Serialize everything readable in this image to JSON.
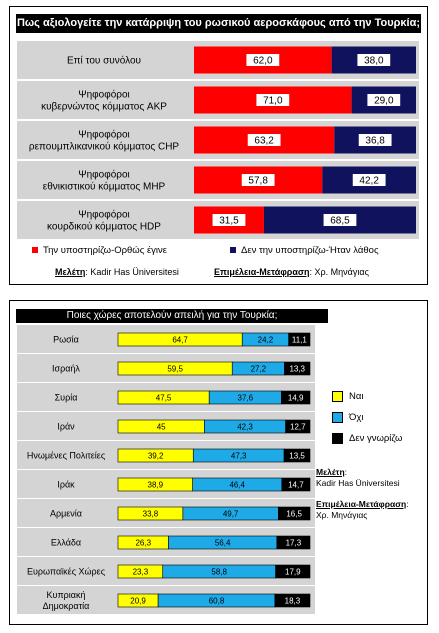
{
  "chart1": {
    "title": "Πως αξιολογείτε την κατάρριψη του ρωσικού αεροσκάφους από την Τουρκία;",
    "legend": [
      {
        "label": "Την υποστηρίζω-Ορθώς έγινε",
        "color": "#ff0000"
      },
      {
        "label": "Δεν την υποστηρίζω-Ήταν λάθος",
        "color": "#10125e"
      }
    ],
    "credit_study_label": "Μελέτη",
    "credit_study_value": ": Kadir Has Üniversitesi",
    "credit_trans_label": "Επιμέλεια-Μετάφραση",
    "credit_trans_value": ": Χρ. Μηνάγιας"
  },
  "chart2": {
    "title": "Ποιες χώρες αποτελούν απειλή για την Τουρκία;",
    "legend": [
      {
        "label": "Ναι",
        "color": "#ffff00"
      },
      {
        "label": "Όχι",
        "color": "#1eaae6"
      },
      {
        "label": "Δεν γνωρίζω",
        "color": "#000000"
      }
    ],
    "credit_study_label": "Μελέτη",
    "credit_study_value": ":",
    "credit_study_line2": "Kadir Has Üniversitesi",
    "credit_trans_label": "Επιμέλεια-Μετάφραση",
    "credit_trans_value": ":",
    "credit_trans_line2": "Χρ. Μηνάγιας"
  },
  "chart_data": [
    {
      "type": "bar",
      "orientation": "horizontal",
      "stacked": true,
      "title": "Πως αξιολογείτε την κατάρριψη του ρωσικού αεροσκάφους από την Τουρκία;",
      "categories": [
        [
          "Επί του συνόλου"
        ],
        [
          "Ψηφοφόροι",
          "κυβερνώντος κόμματος AKP"
        ],
        [
          "Ψηφοφόροι",
          "ρεπουμπλικανικού κόμματος CHP"
        ],
        [
          "Ψηφοφόροι",
          "εθνικιστικού κόμματος MHP"
        ],
        [
          "Ψηφοφόροι",
          "κουρδικού κόμματος HDP"
        ]
      ],
      "series": [
        {
          "name": "Την υποστηρίζω-Ορθώς έγινε",
          "color": "#ff0000",
          "values": [
            62.0,
            71.0,
            63.2,
            57.8,
            31.5
          ],
          "labels": [
            "62,0",
            "71,0",
            "63,2",
            "57,8",
            "31,5"
          ]
        },
        {
          "name": "Δεν την υποστηρίζω-Ήταν λάθος",
          "color": "#10125e",
          "values": [
            38.0,
            29.0,
            36.8,
            42.2,
            68.5
          ],
          "labels": [
            "38,0",
            "29,0",
            "36,8",
            "42,2",
            "68,5"
          ]
        }
      ],
      "xlim": [
        0,
        100
      ],
      "legend_position": "bottom"
    },
    {
      "type": "bar",
      "orientation": "horizontal",
      "stacked": true,
      "title": "Ποιες χώρες αποτελούν απειλή για την Τουρκία;",
      "categories": [
        [
          "Ρωσία"
        ],
        [
          "Ισραήλ"
        ],
        [
          "Συρία"
        ],
        [
          "Ιράν"
        ],
        [
          "Ηνωμένες Πολιτείες"
        ],
        [
          "Ιράκ"
        ],
        [
          "Αρμενία"
        ],
        [
          "Ελλάδα"
        ],
        [
          "Ευρωπαϊκές Χώρες"
        ],
        [
          "Κυπριακή",
          "Δημοκρατία"
        ]
      ],
      "series": [
        {
          "name": "Ναι",
          "color": "#ffff00",
          "values": [
            64.7,
            59.5,
            47.5,
            45,
            39.2,
            38.9,
            33.8,
            26.3,
            23.3,
            20.9
          ],
          "labels": [
            "64,7",
            "59,5",
            "47,5",
            "45",
            "39,2",
            "38,9",
            "33,8",
            "26,3",
            "23,3",
            "20,9"
          ]
        },
        {
          "name": "Όχι",
          "color": "#1eaae6",
          "values": [
            24.2,
            27.2,
            37.6,
            42.3,
            47.3,
            46.4,
            49.7,
            56.4,
            58.8,
            60.8
          ],
          "labels": [
            "24,2",
            "27,2",
            "37,6",
            "42,3",
            "47,3",
            "46,4",
            "49,7",
            "56,4",
            "58,8",
            "60,8"
          ]
        },
        {
          "name": "Δεν γνωρίζω",
          "color": "#000000",
          "values": [
            11.1,
            13.3,
            14.9,
            12.7,
            13.5,
            14.7,
            16.5,
            17.3,
            17.9,
            18.3
          ],
          "labels": [
            "11,1",
            "13,3",
            "14,9",
            "12,7",
            "13,5",
            "14,7",
            "16,5",
            "17,3",
            "17,9",
            "18,3"
          ]
        }
      ],
      "xlim": [
        0,
        100
      ],
      "legend_position": "right"
    }
  ]
}
